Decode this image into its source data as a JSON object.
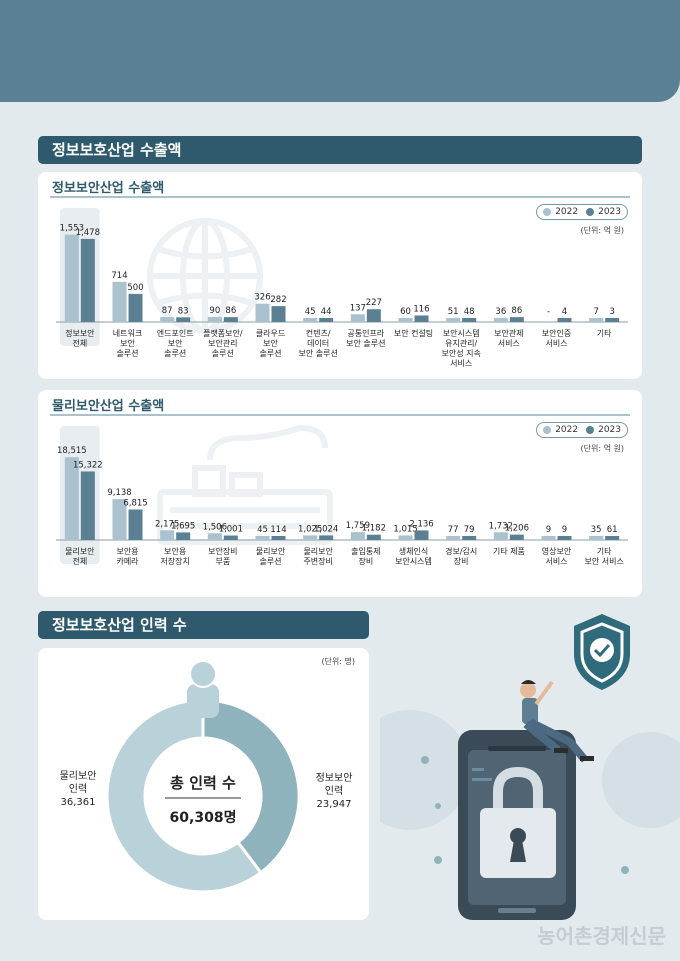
{
  "header": {
    "title": "정보보호산업 수출액"
  },
  "legend": {
    "y2022": "2022",
    "y2023": "2023"
  },
  "chart_data": [
    {
      "type": "bar",
      "title": "정보보안산업 수출액",
      "unit": "(단위: 억 원)",
      "categories": [
        "정보보안\n전체",
        "네트워크\n보안\n솔루션",
        "엔드포인트\n보안\n솔루션",
        "플랫폼보안/\n보안관리\n솔루션",
        "클라우드\n보안\n솔루션",
        "컨텐츠/\n데이터\n보안 솔루션",
        "공통인프라\n보안 솔루션",
        "보안 컨설팅",
        "보안시스템\n유지관리/\n보안성 지속\n서비스",
        "보안관제\n서비스",
        "보안인증\n서비스",
        "기타"
      ],
      "series": [
        {
          "name": "2022",
          "values": [
            1553,
            714,
            87,
            90,
            326,
            45,
            137,
            60,
            51,
            36,
            null,
            7
          ]
        },
        {
          "name": "2023",
          "values": [
            1478,
            500,
            83,
            86,
            282,
            44,
            227,
            116,
            48,
            86,
            4,
            3
          ]
        }
      ],
      "labels_2022": [
        "1,553",
        "714",
        "87",
        "90",
        "326",
        "45",
        "137",
        "60",
        "51",
        "36",
        "-",
        "7"
      ],
      "labels_2023": [
        "1,478",
        "500",
        "83",
        "86",
        "282",
        "44",
        "227",
        "116",
        "48",
        "86",
        "4",
        "3"
      ],
      "ylim": [
        0,
        1600
      ]
    },
    {
      "type": "bar",
      "title": "물리보안산업 수출액",
      "unit": "(단위: 억 원)",
      "categories": [
        "물리보안\n전체",
        "보안용\n카메라",
        "보안용\n저장장치",
        "보안장비\n부품",
        "물리보안\n솔루션",
        "물리보안\n주변장비",
        "출입통제\n장비",
        "생체인식\n보안시스템",
        "경보/감시\n장비",
        "기타 제품",
        "영상보안\n서비스",
        "기타\n보안 서비스"
      ],
      "series": [
        {
          "name": "2022",
          "values": [
            18515,
            9138,
            2175,
            1506,
            45,
            1025,
            1759,
            1015,
            77,
            1732,
            9,
            35
          ]
        },
        {
          "name": "2023",
          "values": [
            15322,
            6815,
            1695,
            1001,
            114,
            1024,
            1182,
            2136,
            79,
            1206,
            9,
            61
          ]
        }
      ],
      "labels_2022": [
        "18,515",
        "9,138",
        "2,175",
        "1,506",
        "45",
        "1,025",
        "1,759",
        "1,015",
        "77",
        "1,732",
        "9",
        "35"
      ],
      "labels_2023": [
        "15,322",
        "6,815",
        "1,695",
        "1,001",
        "114",
        "1,024",
        "1,182",
        "2,136",
        "79",
        "1,206",
        "9",
        "61"
      ],
      "ylim": [
        0,
        19000
      ]
    },
    {
      "type": "pie",
      "title": "정보보호산업 인력 수",
      "unit": "(단위: 명)",
      "center_title": "총 인력 수",
      "center_value": "60,308명",
      "slices": [
        {
          "label": "정보보안\n인력",
          "value": 23947,
          "value_label": "23,947",
          "color": "#8fb3bd"
        },
        {
          "label": "물리보안\n인력",
          "value": 36361,
          "value_label": "36,361",
          "color": "#b9d1d8"
        }
      ]
    }
  ],
  "colors": {
    "c2022": "#a9c2cd",
    "c2023": "#5b8094",
    "dark": "#2f5a6d"
  },
  "watermark": "농어촌경제신문"
}
